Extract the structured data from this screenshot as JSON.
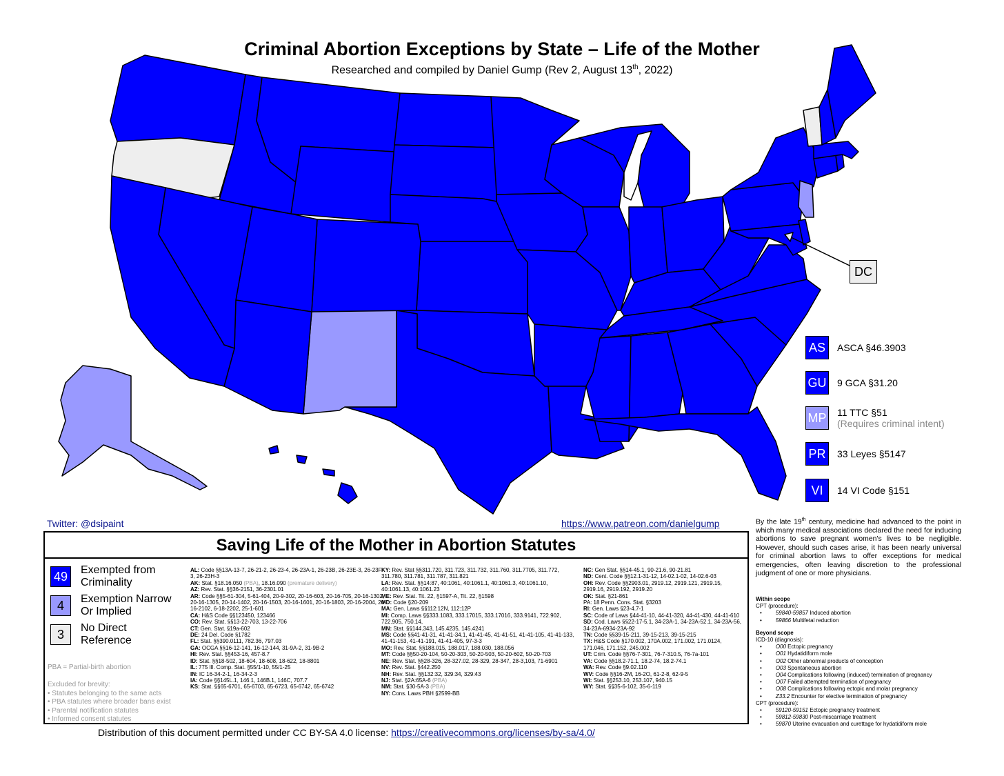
{
  "header": {
    "title": "Criminal Abortion Exceptions by State – Life of the Mother",
    "subtitle_pre": "Researched and compiled by Daniel Gump (Rev 2, August 13",
    "subtitle_sup": "th",
    "subtitle_post": ", 2022)"
  },
  "colors": {
    "exempted": "#0000ff",
    "narrow": "#9999ff",
    "none": "#eeeeee",
    "border": "#000000"
  },
  "map": {
    "dc_label": "DC",
    "state_categories": {
      "none": [
        "OR",
        "VT",
        "DC"
      ],
      "narrow": [
        "NM",
        "AK",
        "NJ",
        "MP"
      ]
    }
  },
  "territories": [
    {
      "code": "AS",
      "text": "ASCA §46.3903",
      "note": "",
      "category": "exempted"
    },
    {
      "code": "GU",
      "text": "9 GCA §31.20",
      "note": "",
      "category": "exempted"
    },
    {
      "code": "MP",
      "text": "11 TTC §51",
      "note": "(Requires criminal intent)",
      "category": "narrow"
    },
    {
      "code": "PR",
      "text": "33 Leyes §5147",
      "note": "",
      "category": "exempted"
    },
    {
      "code": "VI",
      "text": "14 VI Code §151",
      "note": "",
      "category": "exempted"
    }
  ],
  "links": {
    "twitter": "Twitter: @dsipaint",
    "patreon": "https://www.patreon.com/danielgump"
  },
  "panel": {
    "title": "Saving Life of the Mother in Abortion Statutes",
    "legend": [
      {
        "count": "49",
        "label1": "Exempted from",
        "label2": "Criminality",
        "category": "exempted"
      },
      {
        "count": "4",
        "label1": "Exemption Narrow",
        "label2": "Or Implied",
        "category": "narrow"
      },
      {
        "count": "3",
        "label1": "No Direct",
        "label2": "Reference",
        "category": "none"
      }
    ],
    "pba_note": "PBA = Partial-birth abortion",
    "excluded_title": "Excluded for brevity:",
    "excluded_items": [
      "• Statutes belonging to the same acts",
      "• PBA statutes where broader bans exist",
      "• Parental notification statutes",
      "• Informed consent statutes"
    ],
    "col1": [
      {
        "st": "AL:",
        "txt": "Code §§13A-13-7, 26-21-2, 26-23-4, 26-23A-1, 26-23B, 26-23E-3, 26-23F-3, 26-23H-3"
      },
      {
        "st": "AK:",
        "txt": "Stat. §18.16.050",
        "pba": " (PBA)",
        "txt2": ", 18.16.090",
        "pba2": " (premature delivery)"
      },
      {
        "st": "AZ:",
        "txt": "Rev. Stat. §§36-2151, 36-2301.01"
      },
      {
        "st": "AR:",
        "txt": "Code §§5-61-304, 5-61-404, 20-9-302, 20-16-603, 20-16-705, 20-16-1302, 20-16-1305, 20-14-1402, 20-16-1503, 20-16-1601, 20-16-1803, 20-16-2004, 20-16-2102, 6-18-2202, 25-1-601"
      },
      {
        "st": "CA:",
        "txt": "H&S Code §§123450, 123466"
      },
      {
        "st": "CO:",
        "txt": "Rev. Stat. §§13-22-703, 13-22-706"
      },
      {
        "st": "CT:",
        "txt": "Gen. Stat. §19a-602"
      },
      {
        "st": "DE:",
        "txt": "24 Del. Code §1782"
      },
      {
        "st": "FL:",
        "txt": "Stat. §§390.0111, 782.36, 797.03"
      },
      {
        "st": "GA:",
        "txt": "OCGA §§16-12-141, 16-12-144, 31-9A-2, 31-9B-2"
      },
      {
        "st": "HI:",
        "txt": "Rev. Stat. §§453-16, 457-8.7"
      },
      {
        "st": "ID:",
        "txt": "Stat. §§18-502, 18-604, 18-608, 18-622, 18-8801"
      },
      {
        "st": "IL:",
        "txt": "775 Ill. Comp. Stat. §55/1-10, 55/1-25"
      },
      {
        "st": "IN:",
        "txt": "IC 16-34-2-1, 16-34-2-3"
      },
      {
        "st": "IA:",
        "txt": "Code §§145L.1, 146.1, 146B.1, 146C, 707.7"
      },
      {
        "st": "KS:",
        "txt": "Stat. §§65-6701, 65-6703, 65-6723, 65-6742, 65-6742"
      }
    ],
    "col2": [
      {
        "st": "KY:",
        "txt": "Rev. Stat §§311.720, 311.723, 311.732, 311.760, 311.7705, 311.772, 311.780, 311.781, 311.787, 311.821"
      },
      {
        "st": "LA:",
        "txt": "Rev. Stat. §§14:87, 40:1061, 40:1061.1, 40:1061.3, 40:1061.10, 40:1061.13, 40:1061.23"
      },
      {
        "st": "ME:",
        "txt": "Rev. Stat. Tit. 22, §1597-A, Tit. 22, §1598"
      },
      {
        "st": "MD:",
        "txt": "Code §20-209"
      },
      {
        "st": "MA:",
        "txt": "Gen. Laws §§112:12N, 112:12P"
      },
      {
        "st": "MI:",
        "txt": "Comp. Laws §§333.1083, 333.17015, 333.17016, 333.9141, 722.902, 722.905, 750.14,"
      },
      {
        "st": "MN:",
        "txt": "Stat. §§144.343, 145.4235, 145.4241"
      },
      {
        "st": "MS:",
        "txt": "Code §§41-41-31, 41-41-34.1, 41-41-45, 41-41-51, 41-41-105, 41-41-133, 41-41-153, 41-41-191, 41-41-405, 97-3-3"
      },
      {
        "st": "MO:",
        "txt": "Rev. Stat. §§188.015, 188.017, 188.030, 188.056"
      },
      {
        "st": "MT:",
        "txt": "Code §§50-20-104, 50-20-303, 50-20-503, 50-20-602, 50-20-703"
      },
      {
        "st": "NE:",
        "txt": "Rev. Stat. §§28-326, 28-327.02, 28-329, 28-347, 28-3,103, 71-6901"
      },
      {
        "st": "NV:",
        "txt": "Rev. Stat. §442.250"
      },
      {
        "st": "NH:",
        "txt": "Rev. Stat. §§132:32, 329:34, 329:43"
      },
      {
        "st": "NJ:",
        "txt": "Stat. §2A:65A-6",
        "pba": " (PBA)"
      },
      {
        "st": "NM:",
        "txt": "Stat. §30-5A-3",
        "pba": " (PBA)"
      },
      {
        "st": "NY:",
        "txt": "Cons. Laws PBH §2599-BB"
      }
    ],
    "col3": [
      {
        "st": "NC:",
        "txt": "Gen Stat. §§14-45.1, 90-21.6, 90-21.81"
      },
      {
        "st": "ND:",
        "txt": "Cent. Code §§12.1-31-12, 14-02.1-02, 14-02.6-03"
      },
      {
        "st": "OH:",
        "txt": "Rev. Code §§2903.01, 2919.12, 2919.121, 2919.15, 2919.16, 2919.192, 2919.20"
      },
      {
        "st": "OK:",
        "txt": "Stat. §21-861"
      },
      {
        "st": "PA:",
        "txt": "18 Penn. Cons. Stat. §3203",
        "plain": true
      },
      {
        "st": "RI:",
        "txt": "Gen. Laws §23-4.7-1"
      },
      {
        "st": "SC:",
        "txt": "Code of Laws §44-41-10, 44-41-320, 44-41-430, 44-41-610"
      },
      {
        "st": "SD:",
        "txt": "Cod. Laws §§22-17-5.1, 34-23A-1, 34-23A-52.1, 34-23A-56, 34-23A-6934-23A-92"
      },
      {
        "st": "TN:",
        "txt": "Code §§39-15-211, 39-15-213, 39-15-215"
      },
      {
        "st": "TX:",
        "txt": "H&S Code §170.002, 170A.002, 171.002, 171.0124, 171.046, 171.152, 245.002"
      },
      {
        "st": "UT:",
        "txt": "Crim. Code §§76-7-301, 76-7-310.5, 76-7a-101"
      },
      {
        "st": "VA:",
        "txt": "Code §§18.2-71.1, 18.2-74, 18.2-74.1"
      },
      {
        "st": "WA:",
        "txt": "Rev. Code §9.02.110"
      },
      {
        "st": "WV:",
        "txt": "Code §§16-2M, 16-2O, 61-2-8, 62-9-5"
      },
      {
        "st": "WI:",
        "txt": "Stat. §§253.10, 253.107, 940.15"
      },
      {
        "st": "WY:",
        "txt": "Stat. §§35-6-102, 35-6-119"
      }
    ]
  },
  "license": {
    "text": "Distribution of this document permitted under CC BY-SA 4.0 license: ",
    "url": "https://creativecommons.org/licenses/by-sa/4.0/"
  },
  "sidebar": {
    "para_pre": "By the late 19",
    "para_sup": "th",
    "para_post": " century, medicine had advanced to the point in which many medical associations declared the need for inducing abortions to save pregnant women’s lives to be negligible. However, should such cases arise, it has been nearly universal for criminal abortion laws to offer exceptions for medical emergencies, often leaving discretion to the professional judgment of one or more physicians.",
    "within_title": "Within scope",
    "within_sub": "CPT (procedure):",
    "within_items": [
      {
        "code": "59840-59857",
        "desc": "Induced abortion"
      },
      {
        "code": "59866",
        "desc": "Multifetal reduction"
      }
    ],
    "beyond_title": "Beyond scope",
    "beyond_sub1": "ICD-10 (diagnosis):",
    "beyond_icd": [
      {
        "code": "O00",
        "desc": "Ectopic pregnancy"
      },
      {
        "code": "O01",
        "desc": "Hydatidiform mole"
      },
      {
        "code": "O02",
        "desc": "Other abnormal products of conception"
      },
      {
        "code": "O03",
        "desc": "Spontaneous abortion"
      },
      {
        "code": "O04",
        "desc": "Complications following (induced) termination of pregnancy"
      },
      {
        "code": "O07",
        "desc": "Failed attempted termination of pregnancy"
      },
      {
        "code": "O08",
        "desc": "Complications following ectopic and molar pregnancy"
      },
      {
        "code": "Z33.2",
        "desc": "Encounter for elective termination of pregnancy"
      }
    ],
    "beyond_sub2": "CPT (procedure):",
    "beyond_cpt": [
      {
        "code": "59120-59151",
        "desc": "Ectopic pregnancy treatment"
      },
      {
        "code": "59812-59830",
        "desc": "Post-miscarriage treatment"
      },
      {
        "code": "59870",
        "desc": "Uterine evacuation and curettage for hydatidiform mole"
      }
    ]
  }
}
